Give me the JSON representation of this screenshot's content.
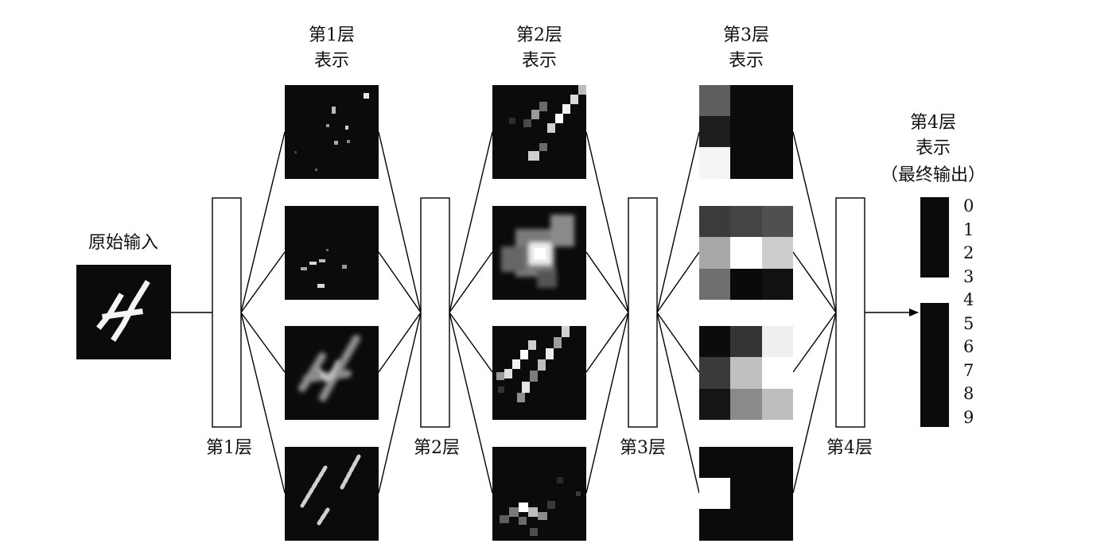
{
  "input": {
    "label": "原始输入"
  },
  "layers": [
    {
      "label": "第1层"
    },
    {
      "label": "第2层"
    },
    {
      "label": "第3层"
    },
    {
      "label": "第4层"
    }
  ],
  "representations": [
    {
      "line1": "第1层",
      "line2": "表示"
    },
    {
      "line1": "第2层",
      "line2": "表示"
    },
    {
      "line1": "第3层",
      "line2": "表示"
    }
  ],
  "output": {
    "line1": "第4层",
    "line2": "表示",
    "line3": "（最终输出）",
    "classes": [
      "0",
      "1",
      "2",
      "3",
      "4",
      "5",
      "6",
      "7",
      "8",
      "9"
    ],
    "highlighted_class": "4"
  },
  "colors": {
    "background": "#ffffff",
    "stroke": "#000000",
    "map_background": "#0b0b0b",
    "highlight": "#ffffff"
  }
}
